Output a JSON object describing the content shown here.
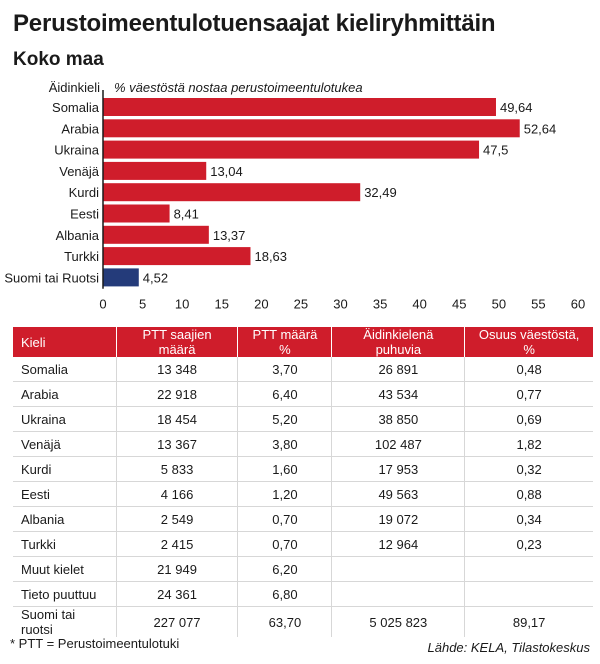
{
  "title": "Perustoimeentulotuensaajat kieliryhmittäin",
  "subtitle": "Koko maa",
  "chart_data": {
    "type": "bar",
    "orientation": "horizontal",
    "category_header": "Äidinkieli",
    "value_header": "% väestöstä nostaa perustoimeentulotukea",
    "categories": [
      "Somalia",
      "Arabia",
      "Ukraina",
      "Venäjä",
      "Kurdi",
      "Eesti",
      "Albania",
      "Turkki",
      "Suomi tai Ruotsi"
    ],
    "values": [
      49.64,
      52.64,
      47.5,
      13.04,
      32.49,
      8.41,
      13.37,
      18.63,
      4.52
    ],
    "value_labels": [
      "49,64",
      "52,64",
      "47,5",
      "13,04",
      "32,49",
      "8,41",
      "13,37",
      "18,63",
      "4,52"
    ],
    "colors": [
      "#cf1d2b",
      "#cf1d2b",
      "#cf1d2b",
      "#cf1d2b",
      "#cf1d2b",
      "#cf1d2b",
      "#cf1d2b",
      "#cf1d2b",
      "#243b7a"
    ],
    "xlim": [
      0,
      60
    ],
    "xticks": [
      "0",
      "5",
      "10",
      "15",
      "20",
      "25",
      "30",
      "35",
      "40",
      "45",
      "50",
      "55",
      "60"
    ],
    "grid": false
  },
  "table": {
    "headers": [
      "Kieli",
      "PTT saajien määrä",
      "PTT määrä %",
      "Äidinkielenä puhuvia",
      "Osuus väestöstä, %"
    ],
    "rows": [
      [
        "Somalia",
        "13 348",
        "3,70",
        "26 891",
        "0,48"
      ],
      [
        "Arabia",
        "22 918",
        "6,40",
        "43 534",
        "0,77"
      ],
      [
        "Ukraina",
        "18 454",
        "5,20",
        "38 850",
        "0,69"
      ],
      [
        "Venäjä",
        "13 367",
        "3,80",
        "102 487",
        "1,82"
      ],
      [
        "Kurdi",
        "5 833",
        "1,60",
        "17 953",
        "0,32"
      ],
      [
        "Eesti",
        "4 166",
        "1,20",
        "49 563",
        "0,88"
      ],
      [
        "Albania",
        "2 549",
        "0,70",
        "19 072",
        "0,34"
      ],
      [
        "Turkki",
        "2 415",
        "0,70",
        "12 964",
        "0,23"
      ],
      [
        "Muut kielet",
        "21 949",
        "6,20",
        "",
        ""
      ],
      [
        "Tieto puuttuu",
        "24 361",
        "6,80",
        "",
        ""
      ],
      [
        "Suomi tai ruotsi",
        "227 077",
        "63,70",
        "5 025 823",
        "89,17"
      ]
    ]
  },
  "footnote": "* PTT = Perustoimeentulotuki",
  "source": "Lähde: KELA, Tilastokeskus"
}
